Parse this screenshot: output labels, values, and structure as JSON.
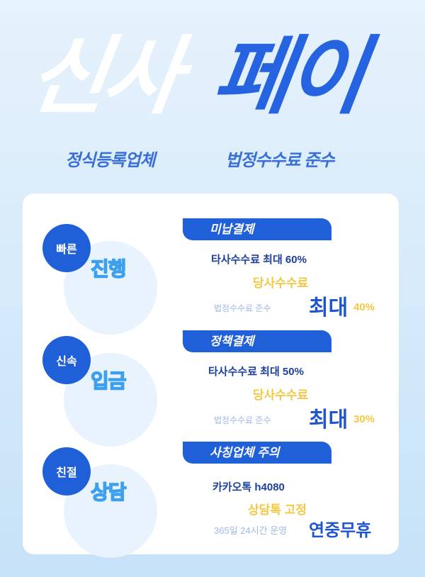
{
  "header": {
    "title_white": "신사",
    "title_blue": "페이",
    "sub_left": "정식등록업체",
    "sub_right": "법정수수료 준수"
  },
  "sections": [
    {
      "badge": "빠른",
      "word": "진행",
      "banner": "미납결제",
      "line1": "타사수수료 최대 60%",
      "line2": "당사수수료",
      "note": "법정수수료 준수",
      "emph": "최대",
      "pct": "40%"
    },
    {
      "badge": "신속",
      "word": "입금",
      "banner": "정책결제",
      "line1": "타사수수료 최대 50%",
      "line2": "당사수수료",
      "note": "법정수수료 준수",
      "emph": "최대",
      "pct": "30%"
    },
    {
      "badge": "친절",
      "word": "상담",
      "banner": "사칭업체 주의",
      "line1": "카카오톡 h4080",
      "line2": "상담톡 고정",
      "note": "365일 24시간 운영",
      "emph": "연중무휴"
    }
  ],
  "colors": {
    "primary": "#1f5fd8",
    "accent": "#f5c842",
    "navy": "#1d3f9e"
  }
}
